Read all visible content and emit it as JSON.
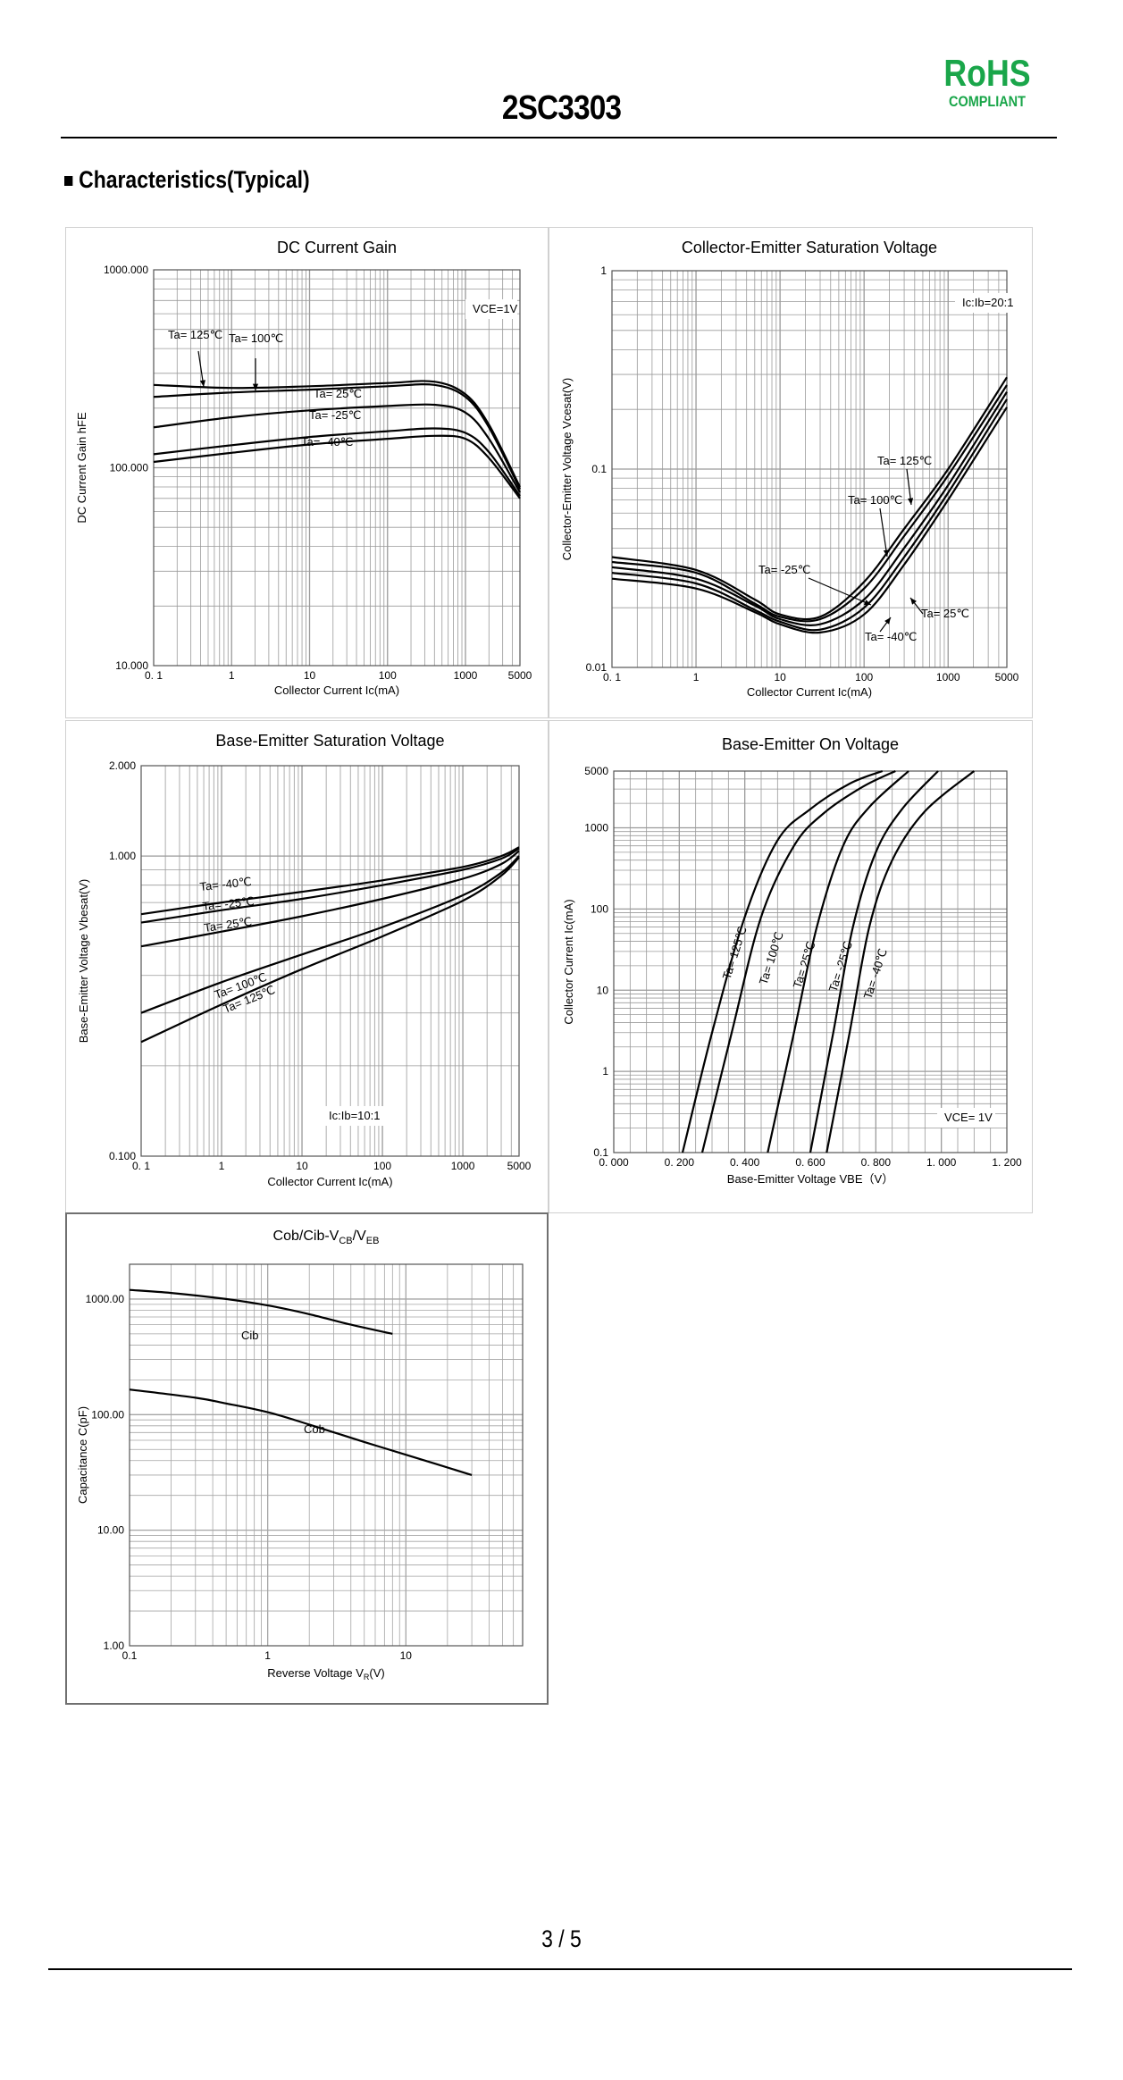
{
  "header": {
    "part_number": "2SC3303",
    "rohs_main": "RoHS",
    "rohs_sub": "COMPLIANT"
  },
  "section_title": "Characteristics(Typical)",
  "footer": {
    "page": "3 / 5"
  },
  "colors": {
    "rohs": "#1aa64a",
    "grid": "#9a9a9a",
    "curve": "#000000"
  },
  "chart_data": [
    {
      "type": "line",
      "title": "DC Current Gain",
      "xlabel": "Collector Current   Ic(mA)",
      "ylabel": "DC Current Gain   hFE",
      "xscale": "log",
      "yscale": "log",
      "xlim": [
        0.1,
        5000
      ],
      "ylim": [
        10,
        1000
      ],
      "xticks": [
        0.1,
        1,
        10,
        100,
        1000,
        5000
      ],
      "xtick_labels": [
        "0. 1",
        "1",
        "10",
        "100",
        "1000",
        "5000"
      ],
      "yticks": [
        10,
        100,
        1000
      ],
      "ytick_labels": [
        "10.000",
        "100.000",
        "1000.000"
      ],
      "condition": "VCE=1V",
      "series": [
        {
          "name": "Ta= 125℃",
          "x": [
            0.1,
            1,
            10,
            100,
            400,
            1000,
            2000,
            5000
          ],
          "y": [
            262,
            253,
            258,
            268,
            272,
            235,
            165,
            80
          ]
        },
        {
          "name": "Ta= 100℃",
          "x": [
            0.1,
            1,
            10,
            100,
            400,
            1000,
            2000,
            5000
          ],
          "y": [
            228,
            240,
            248,
            258,
            262,
            228,
            160,
            78
          ]
        },
        {
          "name": "Ta= 25℃",
          "x": [
            0.1,
            1,
            10,
            100,
            400,
            1000,
            2000,
            5000
          ],
          "y": [
            160,
            180,
            195,
            205,
            208,
            190,
            140,
            75
          ]
        },
        {
          "name": "Ta= -25℃",
          "x": [
            0.1,
            1,
            10,
            100,
            400,
            1000,
            2000,
            5000
          ],
          "y": [
            117,
            130,
            143,
            153,
            158,
            150,
            120,
            72
          ]
        },
        {
          "name": "Ta= -40℃",
          "x": [
            0.1,
            1,
            10,
            100,
            400,
            1000,
            2000,
            5000
          ],
          "y": [
            107,
            119,
            131,
            140,
            145,
            140,
            112,
            70
          ]
        }
      ]
    },
    {
      "type": "line",
      "title": "Collector-Emitter Saturation Voltage",
      "xlabel": "Collector Current   Ic(mA)",
      "ylabel": "Collector-Emitter Voltage   Vcesat(V)",
      "xscale": "log",
      "yscale": "log",
      "xlim": [
        0.1,
        5000
      ],
      "ylim": [
        0.01,
        1
      ],
      "xticks": [
        0.1,
        1,
        10,
        100,
        1000,
        5000
      ],
      "xtick_labels": [
        "0. 1",
        "1",
        "10",
        "100",
        "1000",
        "5000"
      ],
      "yticks": [
        0.01,
        0.1,
        1
      ],
      "ytick_labels": [
        "0.01",
        "0.1",
        "1"
      ],
      "condition": "Ic:Ib=20:1",
      "series": [
        {
          "name": "Ta= 125℃",
          "x": [
            0.1,
            1,
            5,
            10,
            30,
            100,
            300,
            1000,
            5000
          ],
          "y": [
            0.036,
            0.031,
            0.022,
            0.0185,
            0.018,
            0.027,
            0.05,
            0.1,
            0.29
          ]
        },
        {
          "name": "Ta= 100℃",
          "x": [
            0.1,
            1,
            5,
            10,
            30,
            100,
            300,
            1000,
            5000
          ],
          "y": [
            0.034,
            0.03,
            0.021,
            0.018,
            0.0175,
            0.025,
            0.046,
            0.093,
            0.265
          ]
        },
        {
          "name": "Ta= 25℃",
          "x": [
            0.1,
            1,
            5,
            10,
            30,
            100,
            300,
            1000,
            5000
          ],
          "y": [
            0.032,
            0.028,
            0.0205,
            0.0175,
            0.0165,
            0.022,
            0.04,
            0.083,
            0.245
          ]
        },
        {
          "name": "Ta= -25℃",
          "x": [
            0.1,
            1,
            5,
            10,
            30,
            100,
            300,
            1000,
            5000
          ],
          "y": [
            0.03,
            0.0265,
            0.0195,
            0.017,
            0.0155,
            0.02,
            0.036,
            0.076,
            0.225
          ]
        },
        {
          "name": "Ta= -40℃",
          "x": [
            0.1,
            1,
            5,
            10,
            30,
            100,
            300,
            1000,
            5000
          ],
          "y": [
            0.028,
            0.025,
            0.019,
            0.0165,
            0.015,
            0.0185,
            0.033,
            0.07,
            0.205
          ]
        }
      ]
    },
    {
      "type": "line",
      "title": "Base-Emitter Saturation Voltage",
      "xlabel": "Collector Current   Ic(mA)",
      "ylabel": "Base-Emitter Voltage   Vbesat(V)",
      "xscale": "log",
      "yscale": "log",
      "xlim": [
        0.1,
        5000
      ],
      "ylim": [
        0.1,
        2
      ],
      "xticks": [
        0.1,
        1,
        10,
        100,
        1000,
        5000
      ],
      "xtick_labels": [
        "0. 1",
        "1",
        "10",
        "100",
        "1000",
        "5000"
      ],
      "yticks": [
        0.1,
        1,
        2
      ],
      "ytick_labels": [
        "0.100",
        "1.000",
        "2.000"
      ],
      "condition": "Ic:Ib=10:1",
      "series": [
        {
          "name": "Ta= -40℃",
          "x": [
            0.1,
            1,
            10,
            100,
            1000,
            3000,
            5000
          ],
          "y": [
            0.64,
            0.7,
            0.76,
            0.83,
            0.92,
            1.0,
            1.07
          ]
        },
        {
          "name": "Ta= -25℃",
          "x": [
            0.1,
            1,
            10,
            100,
            1000,
            3000,
            5000
          ],
          "y": [
            0.6,
            0.66,
            0.72,
            0.8,
            0.9,
            0.98,
            1.06
          ]
        },
        {
          "name": "Ta= 25℃",
          "x": [
            0.1,
            1,
            10,
            100,
            1000,
            3000,
            5000
          ],
          "y": [
            0.5,
            0.56,
            0.63,
            0.72,
            0.84,
            0.94,
            1.04
          ]
        },
        {
          "name": "Ta= 100℃",
          "x": [
            0.1,
            1,
            10,
            100,
            1000,
            3000,
            5000
          ],
          "y": [
            0.3,
            0.38,
            0.47,
            0.58,
            0.74,
            0.88,
            1.0
          ]
        },
        {
          "name": "Ta= 125℃",
          "x": [
            0.1,
            1,
            10,
            100,
            1000,
            3000,
            5000
          ],
          "y": [
            0.24,
            0.32,
            0.42,
            0.54,
            0.71,
            0.86,
            0.99
          ]
        }
      ]
    },
    {
      "type": "line",
      "title": "Base-Emitter On Voltage",
      "xlabel": "Base-Emitter Voltage   VBE（V）",
      "ylabel": "Collector Current   Ic(mA)",
      "xscale": "linear",
      "yscale": "log",
      "xlim": [
        0,
        1.2
      ],
      "ylim": [
        0.1,
        5000
      ],
      "xticks": [
        0,
        0.2,
        0.4,
        0.6,
        0.8,
        1.0,
        1.2
      ],
      "xtick_labels": [
        "0. 000",
        "0. 200",
        "0. 400",
        "0. 600",
        "0. 800",
        "1. 000",
        "1. 200"
      ],
      "yticks": [
        0.1,
        1,
        10,
        100,
        1000,
        5000
      ],
      "ytick_labels": [
        "0.1",
        "1",
        "10",
        "100",
        "1000",
        "5000"
      ],
      "condition": "VCE= 1V",
      "series": [
        {
          "name": "Ta= 125℃",
          "x": [
            0.21,
            0.3,
            0.4,
            0.5,
            0.6,
            0.72,
            0.82
          ],
          "y": [
            0.1,
            3,
            80,
            700,
            1700,
            3500,
            5000
          ]
        },
        {
          "name": "Ta= 100℃",
          "x": [
            0.27,
            0.36,
            0.45,
            0.55,
            0.64,
            0.76,
            0.86
          ],
          "y": [
            0.1,
            3,
            80,
            600,
            1500,
            3200,
            5000
          ]
        },
        {
          "name": "Ta= 25℃",
          "x": [
            0.47,
            0.55,
            0.62,
            0.7,
            0.78,
            0.9
          ],
          "y": [
            0.1,
            3,
            60,
            600,
            1800,
            5000
          ]
        },
        {
          "name": "Ta= -25℃",
          "x": [
            0.6,
            0.67,
            0.73,
            0.8,
            0.88,
            0.99
          ],
          "y": [
            0.1,
            3,
            60,
            500,
            1700,
            5000
          ]
        },
        {
          "name": "Ta= -40℃",
          "x": [
            0.65,
            0.72,
            0.78,
            0.85,
            0.95,
            1.1
          ],
          "y": [
            0.1,
            3,
            60,
            400,
            1600,
            5000
          ]
        }
      ]
    },
    {
      "type": "line",
      "title": "Cob/Cib-V",
      "title_sub1": "CB",
      "title_mid": "/V",
      "title_sub2": "EB",
      "xlabel": "Reverse Voltage  V",
      "xlabel_sub": "R",
      "xlabel_tail": "(V)",
      "ylabel": "Capacitance   C(pF)",
      "xscale": "log",
      "yscale": "log",
      "xlim": [
        0.1,
        70
      ],
      "ylim": [
        1,
        2000
      ],
      "xticks": [
        0.1,
        1,
        10
      ],
      "xtick_labels": [
        "0.1",
        "1",
        "10"
      ],
      "yticks": [
        1,
        10,
        100,
        1000
      ],
      "ytick_labels": [
        "1.00",
        "10.00",
        "100.00",
        "1000.00"
      ],
      "series": [
        {
          "name": "Cib",
          "x": [
            0.1,
            0.2,
            0.5,
            1,
            2,
            4,
            8
          ],
          "y": [
            1200,
            1130,
            1000,
            880,
            740,
            600,
            500
          ]
        },
        {
          "name": "Cob",
          "x": [
            0.1,
            0.3,
            0.5,
            1,
            2,
            5,
            10,
            30
          ],
          "y": [
            165,
            140,
            125,
            105,
            82,
            58,
            45,
            30
          ]
        }
      ]
    }
  ]
}
